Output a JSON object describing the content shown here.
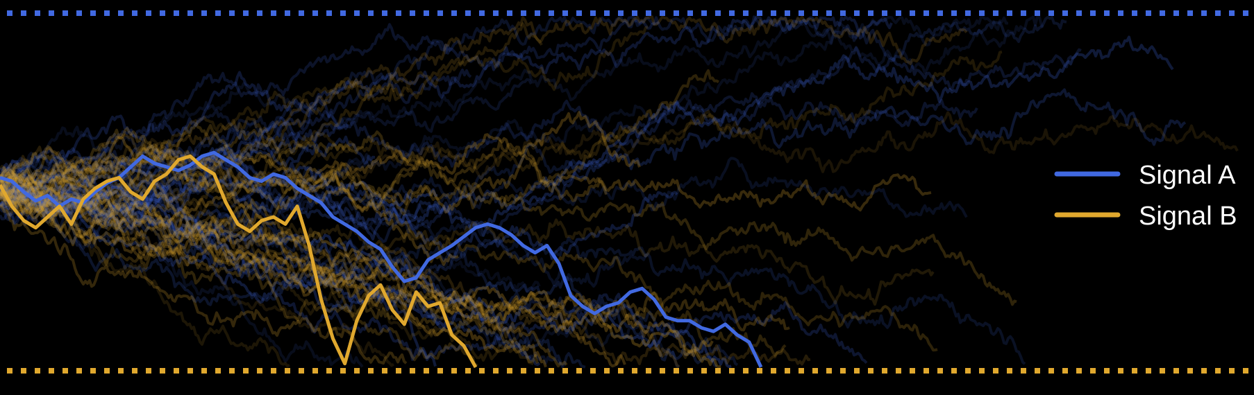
{
  "chart_data": {
    "type": "line",
    "title": "",
    "xlabel": "",
    "ylabel": "",
    "xlim": [
      0,
      1000
    ],
    "ylim": [
      -1,
      1
    ],
    "grid": false,
    "axes_visible": false,
    "background": "#000000",
    "legend_position": "right",
    "series": [
      {
        "name": "Signal A",
        "color": "#4169e1",
        "highlighted_path": {
          "x": [
            0,
            25,
            50,
            75,
            100,
            125,
            150,
            175,
            200,
            225,
            250,
            275,
            300,
            325,
            350,
            375,
            400,
            425,
            450,
            475,
            500,
            525,
            550,
            575,
            600,
            625,
            650,
            675,
            700,
            725,
            750,
            775,
            800,
            825,
            850,
            875,
            900,
            925,
            950,
            975,
            1000,
            1025,
            1050,
            1075,
            1100,
            1125,
            1150,
            1175,
            1200,
            1225,
            1250,
            1275,
            1300,
            1325,
            1350,
            1375,
            1400,
            1425,
            1450,
            1475,
            1500,
            1525,
            1550,
            1575,
            1600
          ],
          "y": [
            0.08,
            0.06,
            0.0,
            -0.05,
            -0.02,
            -0.08,
            -0.04,
            -0.06,
            0.0,
            0.05,
            0.08,
            0.14,
            0.2,
            0.16,
            0.14,
            0.12,
            0.15,
            0.2,
            0.22,
            0.18,
            0.14,
            0.08,
            0.06,
            0.1,
            0.08,
            0.02,
            -0.02,
            -0.06,
            -0.14,
            -0.18,
            -0.22,
            -0.28,
            -0.32,
            -0.42,
            -0.5,
            -0.48,
            -0.38,
            -0.34,
            -0.3,
            -0.25,
            -0.2,
            -0.18,
            -0.2,
            -0.24,
            -0.3,
            -0.34,
            -0.3,
            -0.4,
            -0.58,
            -0.64,
            -0.68,
            -0.64,
            -0.62,
            -0.56,
            -0.54,
            -0.6,
            -0.7,
            -0.72,
            -0.72,
            -0.76,
            -0.78,
            -0.74,
            -0.8,
            -0.84,
            -0.98
          ]
        }
      },
      {
        "name": "Signal B",
        "color": "#e0a82e",
        "highlighted_path": {
          "x": [
            0,
            25,
            50,
            75,
            100,
            125,
            150,
            175,
            200,
            225,
            250,
            275,
            300,
            325,
            350,
            375,
            400,
            425,
            450,
            475,
            500,
            525,
            550,
            575,
            600,
            625,
            650,
            675,
            700,
            725,
            750,
            775,
            800,
            825,
            850,
            875,
            900,
            925,
            950,
            975,
            1000
          ],
          "y": [
            0.04,
            -0.08,
            -0.16,
            -0.2,
            -0.14,
            -0.08,
            -0.18,
            -0.04,
            0.02,
            0.06,
            0.08,
            0.0,
            -0.04,
            0.06,
            0.1,
            0.18,
            0.2,
            0.14,
            0.1,
            -0.06,
            -0.18,
            -0.22,
            -0.16,
            -0.14,
            -0.18,
            -0.08,
            -0.3,
            -0.6,
            -0.82,
            -0.96,
            -0.72,
            -0.58,
            -0.52,
            -0.66,
            -0.74,
            -0.56,
            -0.64,
            -0.62,
            -0.8,
            -0.86,
            -0.98
          ]
        }
      }
    ],
    "reference_lines": [
      {
        "y": 1,
        "color": "#4169e1",
        "style": "dotted"
      },
      {
        "y": -1,
        "color": "#e0a82e",
        "style": "dotted"
      }
    ],
    "legend": [
      {
        "label": "Signal A",
        "color": "#4169e1"
      },
      {
        "label": "Signal B",
        "color": "#e0a82e"
      }
    ]
  }
}
